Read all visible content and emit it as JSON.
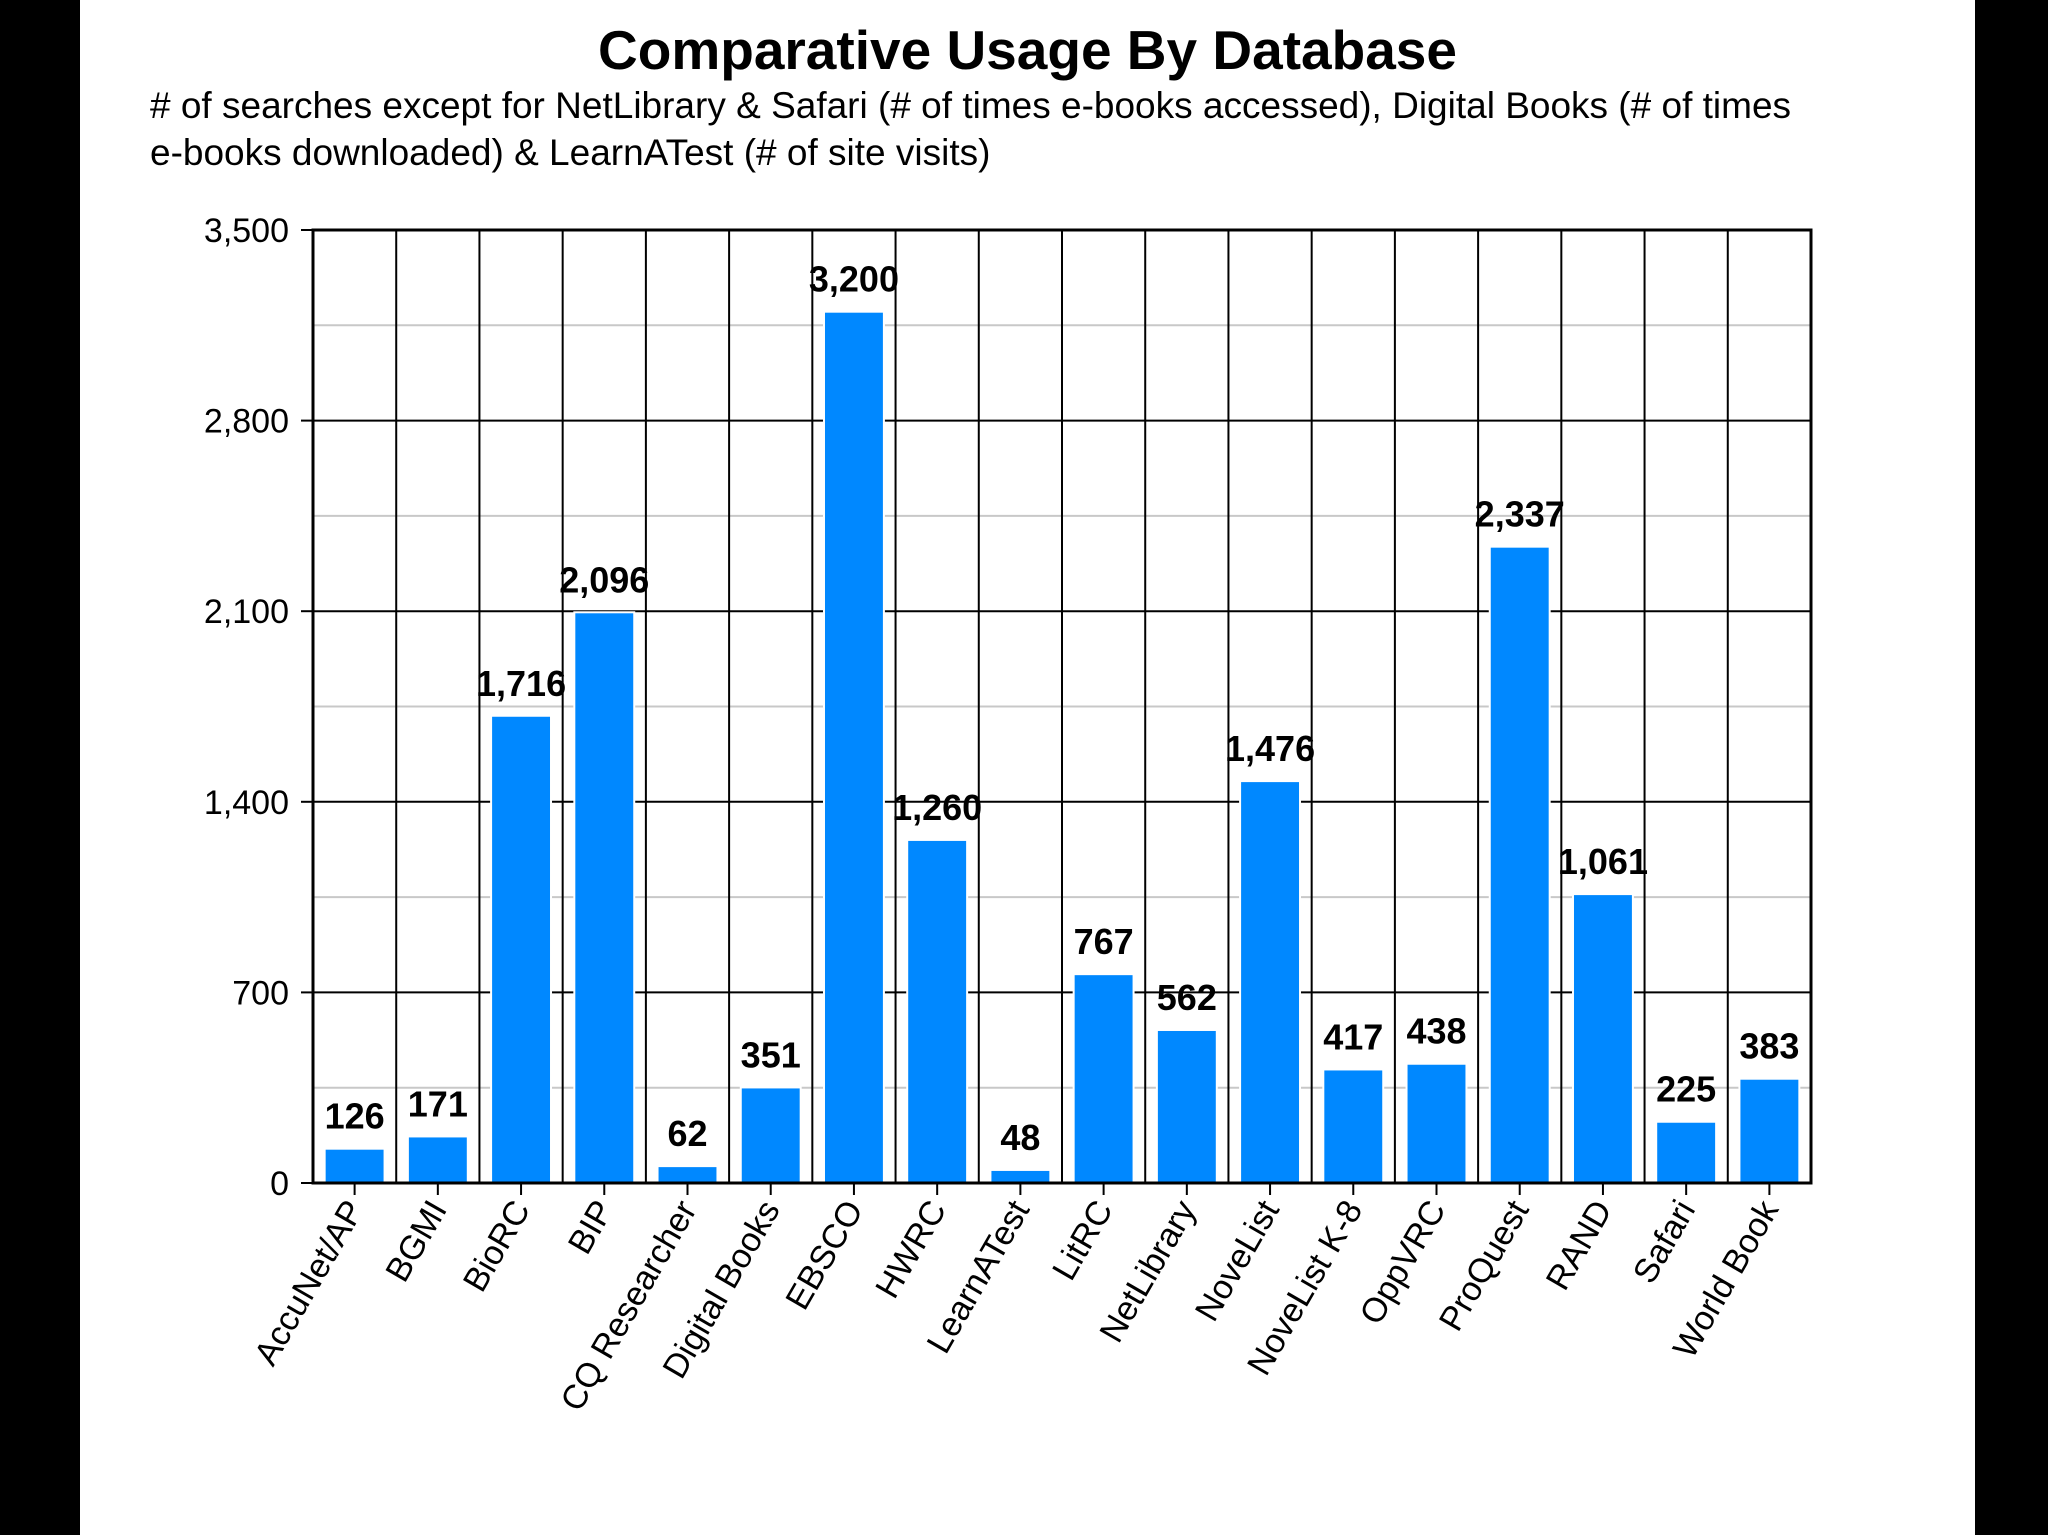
{
  "title": "Comparative Usage By Database",
  "subtitle": "# of searches except for NetLibrary & Safari (# of times e-books accessed), Digital Books (# of times e-books downloaded) & LearnATest  (# of site visits)",
  "colors": {
    "bar": "#0088ff",
    "major_grid": "#000000",
    "minor_grid": "#c8c8c8",
    "background": "#ffffff",
    "frame": "#000000"
  },
  "chart_data": {
    "type": "bar",
    "title": "Comparative Usage By Database",
    "subtitle": "# of searches except for NetLibrary & Safari (# of times e-books accessed), Digital Books (# of times e-books downloaded) & LearnATest  (# of site visits)",
    "xlabel": "",
    "ylabel": "",
    "categories": [
      "AccuNet/AP",
      "BGMI",
      "BioRC",
      "BIP",
      "CQ Researcher",
      "Digital Books",
      "EBSCO",
      "HWRC",
      "LearnATest",
      "LitRC",
      "NetLibrary",
      "NoveList",
      "NoveList K-8",
      "OppVRC",
      "ProQuest",
      "RAND",
      "Safari",
      "World Book"
    ],
    "values": [
      126,
      171,
      1716,
      2096,
      62,
      351,
      3200,
      1260,
      48,
      767,
      562,
      1476,
      417,
      438,
      2337,
      1061,
      225,
      383
    ],
    "data_labels": [
      "126",
      "171",
      "1,716",
      "2,096",
      "62",
      "351",
      "3,200",
      "1,260",
      "48",
      "767",
      "562",
      "1,476",
      "417",
      "438",
      "2,337",
      "1,061",
      "225",
      "383"
    ],
    "ylim": [
      0,
      3500
    ],
    "yticks": [
      0,
      700,
      1400,
      2100,
      2800,
      3500
    ],
    "ytick_labels": [
      "0",
      "700",
      "1,400",
      "2,100",
      "2,800",
      "3,500"
    ],
    "minor_grid_step": 350,
    "grid": true,
    "legend": "none"
  }
}
